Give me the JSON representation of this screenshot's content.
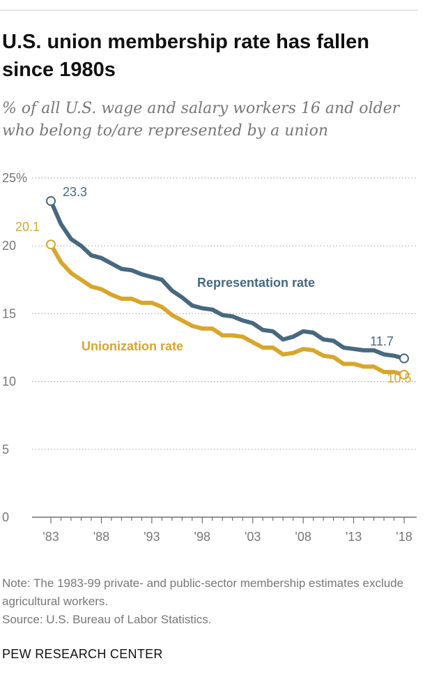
{
  "header": {
    "title": "U.S. union membership rate has fallen since 1980s",
    "subtitle": "% of all U.S. wage and salary workers 16 and older who belong to/are represented by a union"
  },
  "footer": {
    "note": "Note: The 1983-99 private- and public-sector membership estimates exclude agricultural workers.",
    "source": "Source: U.S. Bureau of Labor Statistics.",
    "org": "PEW RESEARCH CENTER"
  },
  "colors": {
    "representation": "#46697f",
    "unionization": "#d7a62b",
    "grid": "#aaaaaa",
    "axis": "#555555",
    "text_muted": "#777777"
  },
  "chart_data": {
    "type": "line",
    "title": "U.S. union membership rate has fallen since 1980s",
    "xlabel": "",
    "ylabel": "",
    "x": [
      1983,
      1984,
      1985,
      1986,
      1987,
      1988,
      1989,
      1990,
      1991,
      1992,
      1993,
      1994,
      1995,
      1996,
      1997,
      1998,
      1999,
      2000,
      2001,
      2002,
      2003,
      2004,
      2005,
      2006,
      2007,
      2008,
      2009,
      2010,
      2011,
      2012,
      2013,
      2014,
      2015,
      2016,
      2017,
      2018
    ],
    "xlim": [
      1983,
      2018
    ],
    "ylim": [
      0,
      25
    ],
    "y_ticks": [
      0,
      5,
      10,
      15,
      20,
      25
    ],
    "y_tick_labels": [
      "0",
      "5",
      "10",
      "15",
      "20",
      "25%"
    ],
    "x_ticks": [
      1983,
      1988,
      1993,
      1998,
      2003,
      2008,
      2013,
      2018
    ],
    "x_tick_labels": [
      "'83",
      "'88",
      "'93",
      "'98",
      "'03",
      "'08",
      "'13",
      "'18"
    ],
    "grid": true,
    "series": [
      {
        "name": "Representation rate",
        "key": "representation",
        "values": [
          23.3,
          21.6,
          20.5,
          20.0,
          19.3,
          19.1,
          18.7,
          18.3,
          18.2,
          17.9,
          17.7,
          17.5,
          16.7,
          16.2,
          15.6,
          15.4,
          15.3,
          14.9,
          14.8,
          14.5,
          14.3,
          13.8,
          13.7,
          13.1,
          13.3,
          13.7,
          13.6,
          13.1,
          13.0,
          12.5,
          12.4,
          12.3,
          12.3,
          12.0,
          11.9,
          11.7
        ],
        "start_label": "23.3",
        "end_label": "11.7"
      },
      {
        "name": "Unionization rate",
        "key": "unionization",
        "values": [
          20.1,
          18.8,
          18.0,
          17.5,
          17.0,
          16.8,
          16.4,
          16.1,
          16.1,
          15.8,
          15.8,
          15.5,
          14.9,
          14.5,
          14.1,
          13.9,
          13.9,
          13.4,
          13.4,
          13.3,
          12.9,
          12.5,
          12.5,
          12.0,
          12.1,
          12.4,
          12.3,
          11.9,
          11.8,
          11.3,
          11.3,
          11.1,
          11.1,
          10.7,
          10.7,
          10.5
        ],
        "start_label": "20.1",
        "end_label": "10.5"
      }
    ]
  }
}
